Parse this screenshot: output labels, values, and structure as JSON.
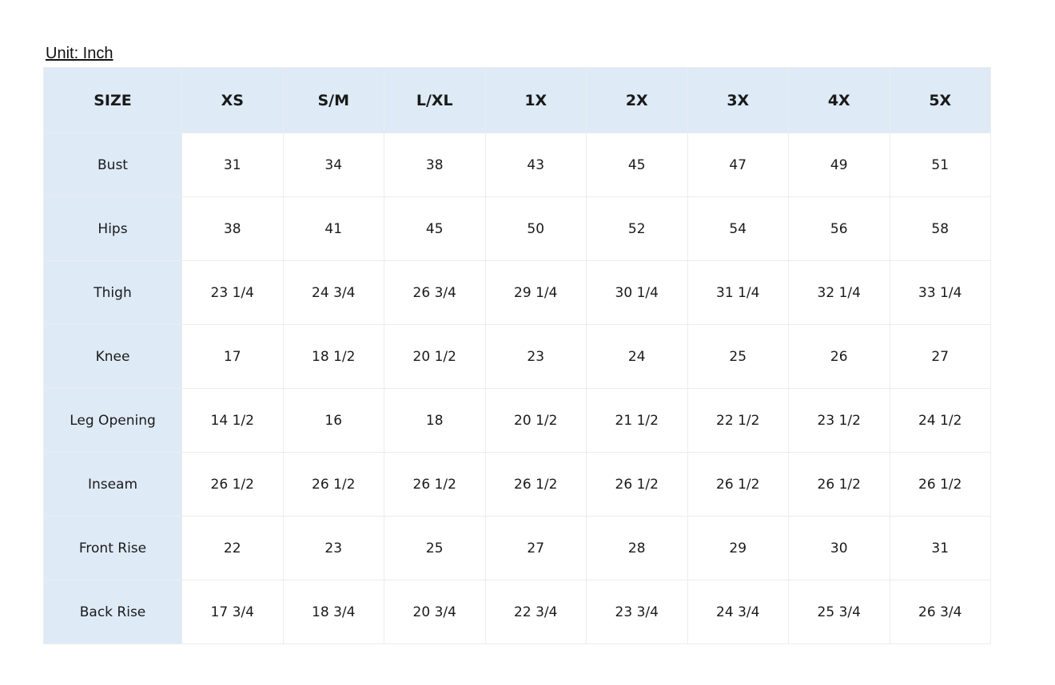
{
  "unit_label": "Unit: Inch",
  "colors": {
    "header_bg": "#deeaf6",
    "border": "#ececec"
  },
  "table": {
    "headers": [
      "SIZE",
      "XS",
      "S/M",
      "L/XL",
      "1X",
      "2X",
      "3X",
      "4X",
      "5X"
    ],
    "rows": [
      {
        "label": "Bust",
        "values": [
          "31",
          "34",
          "38",
          "43",
          "45",
          "47",
          "49",
          "51"
        ]
      },
      {
        "label": "Hips",
        "values": [
          "38",
          "41",
          "45",
          "50",
          "52",
          "54",
          "56",
          "58"
        ]
      },
      {
        "label": "Thigh",
        "values": [
          "23 1/4",
          "24 3/4",
          "26 3/4",
          "29 1/4",
          "30 1/4",
          "31 1/4",
          "32 1/4",
          "33 1/4"
        ]
      },
      {
        "label": "Knee",
        "values": [
          "17",
          "18 1/2",
          "20 1/2",
          "23",
          "24",
          "25",
          "26",
          "27"
        ]
      },
      {
        "label": "Leg Opening",
        "values": [
          "14 1/2",
          "16",
          "18",
          "20 1/2",
          "21 1/2",
          "22 1/2",
          "23 1/2",
          "24 1/2"
        ]
      },
      {
        "label": "Inseam",
        "values": [
          "26 1/2",
          "26 1/2",
          "26 1/2",
          "26 1/2",
          "26 1/2",
          "26 1/2",
          "26 1/2",
          "26 1/2"
        ]
      },
      {
        "label": "Front Rise",
        "values": [
          "22",
          "23",
          "25",
          "27",
          "28",
          "29",
          "30",
          "31"
        ]
      },
      {
        "label": "Back Rise",
        "values": [
          "17 3/4",
          "18 3/4",
          "20 3/4",
          "22 3/4",
          "23 3/4",
          "24 3/4",
          "25 3/4",
          "26 3/4"
        ]
      }
    ]
  }
}
